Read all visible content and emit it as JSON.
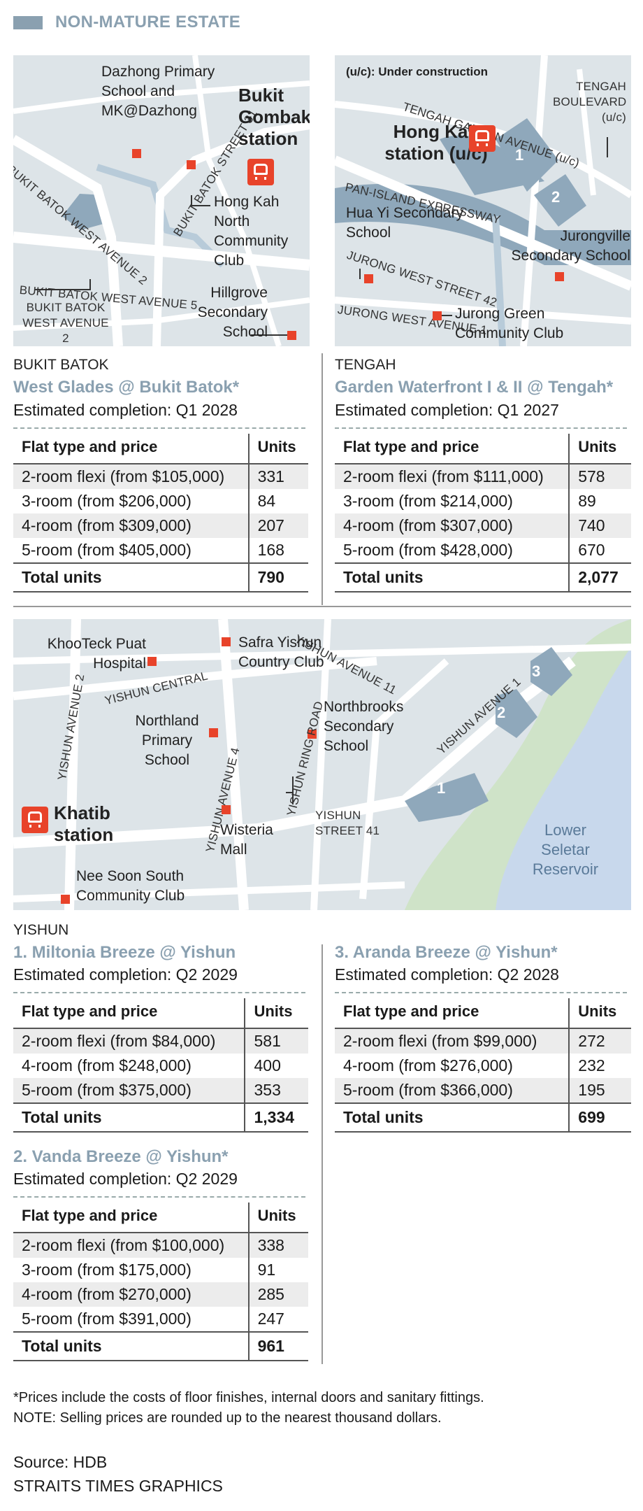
{
  "header": {
    "title": "NON-MATURE ESTATE"
  },
  "colors": {
    "accent": "#e8432a",
    "heading": "#8aa0b0",
    "water": "#8fa8bb",
    "park": "#cfe3c8",
    "reservoir": "#c8d8ec"
  },
  "map1": {
    "roads": [
      "BUKIT BATOK WEST AVENUE 2",
      "BUKIT BATOK STREET 31",
      "BUKIT BATOK WEST AVENUE 5",
      "BUKIT BATOK WEST AVENUE 2"
    ],
    "place_dazhong": "Dazhong Primary School and MK@Dazhong",
    "station": "Bukit Gombak station",
    "place_hongkah": "Hong Kah North Community Club",
    "place_hillgrove": "Hillgrove Secondary School",
    "icon": "mrt-train-icon"
  },
  "map2": {
    "legend": "(u/c): Under construction",
    "roads": [
      "TENGAH GARDEN AVENUE (u/c)",
      "PAN-ISLAND EXPRESSWAY",
      "JURONG WEST STREET 42",
      "JURONG WEST AVENUE 1"
    ],
    "tengah_blvd": "TENGAH BOULEVARD (u/c)",
    "station": "Hong Kah station (u/c)",
    "place_huayi": "Hua Yi Secondary School",
    "place_jurongville": "Jurongville Secondary School",
    "place_jurong_green": "Jurong Green Community Club",
    "blocks": [
      "1",
      "2"
    ]
  },
  "map3": {
    "place_khoo": "KhooTeck Puat Hospital",
    "place_safra": "Safra Yishun Country Club",
    "roads": [
      "YISHUN AVENUE 11",
      "YISHUN AVENUE 2",
      "YISHUN CENTRAL",
      "YISHUN AVENUE 4",
      "YISHUN RING ROAD",
      "YISHUN AVENUE 1",
      "YISHUN STREET 41"
    ],
    "place_northland": "Northland Primary School",
    "place_northbrooks": "Northbrooks Secondary School",
    "station": "Khatib station",
    "place_wisteria": "Wisteria Mall",
    "place_neesoon": "Nee Soon South Community Club",
    "reservoir": "Lower Seletar Reservoir",
    "blocks": [
      "1",
      "2",
      "3"
    ]
  },
  "bukit_batok": {
    "estate": "BUKIT BATOK",
    "project": "West Glades @ Bukit Batok*",
    "completion": "Estimated completion: Q1 2028",
    "col_type": "Flat type and price",
    "col_units": "Units",
    "rows": [
      {
        "type": "2-room flexi (from $105,000)",
        "units": "331"
      },
      {
        "type": "3-room (from $206,000)",
        "units": "84"
      },
      {
        "type": "4-room (from $309,000)",
        "units": "207"
      },
      {
        "type": "5-room (from $405,000)",
        "units": "168"
      }
    ],
    "total_label": "Total units",
    "total": "790"
  },
  "tengah": {
    "estate": "TENGAH",
    "project": "Garden Waterfront I & II @ Tengah*",
    "completion": "Estimated completion: Q1 2027",
    "col_type": "Flat type and price",
    "col_units": "Units",
    "rows": [
      {
        "type": "2-room flexi (from $111,000)",
        "units": "578"
      },
      {
        "type": "3-room (from $214,000)",
        "units": "89"
      },
      {
        "type": "4-room (from $307,000)",
        "units": "740"
      },
      {
        "type": "5-room (from $428,000)",
        "units": "670"
      }
    ],
    "total_label": "Total units",
    "total": "2,077"
  },
  "yishun": {
    "estate": "YISHUN",
    "miltonia": {
      "project": "1. Miltonia Breeze @ Yishun",
      "completion": "Estimated completion: Q2 2029",
      "col_type": "Flat type and price",
      "col_units": "Units",
      "rows": [
        {
          "type": "2-room flexi (from $84,000)",
          "units": "581"
        },
        {
          "type": "4-room (from $248,000)",
          "units": "400"
        },
        {
          "type": "5-room (from $375,000)",
          "units": "353"
        }
      ],
      "total_label": "Total units",
      "total": "1,334"
    },
    "aranda": {
      "project": "3. Aranda Breeze @ Yishun*",
      "completion": "Estimated completion: Q2 2028",
      "col_type": "Flat type and price",
      "col_units": "Units",
      "rows": [
        {
          "type": "2-room flexi (from $99,000)",
          "units": "272"
        },
        {
          "type": "4-room (from $276,000)",
          "units": "232"
        },
        {
          "type": "5-room (from $366,000)",
          "units": "195"
        }
      ],
      "total_label": "Total units",
      "total": "699"
    },
    "vanda": {
      "project": "2. Vanda Breeze @ Yishun*",
      "completion": "Estimated completion: Q2 2029",
      "col_type": "Flat type and price",
      "col_units": "Units",
      "rows": [
        {
          "type": "2-room flexi (from $100,000)",
          "units": "338"
        },
        {
          "type": "3-room (from $175,000)",
          "units": "91"
        },
        {
          "type": "4-room (from $270,000)",
          "units": "285"
        },
        {
          "type": "5-room (from $391,000)",
          "units": "247"
        }
      ],
      "total_label": "Total units",
      "total": "961"
    }
  },
  "footnote": {
    "line1": "*Prices include the costs of floor finishes, internal doors and sanitary fittings.",
    "line2": "NOTE: Selling prices are rounded up to the nearest thousand dollars."
  },
  "source": {
    "line1": "Source: HDB",
    "line2": "STRAITS TIMES GRAPHICS"
  }
}
